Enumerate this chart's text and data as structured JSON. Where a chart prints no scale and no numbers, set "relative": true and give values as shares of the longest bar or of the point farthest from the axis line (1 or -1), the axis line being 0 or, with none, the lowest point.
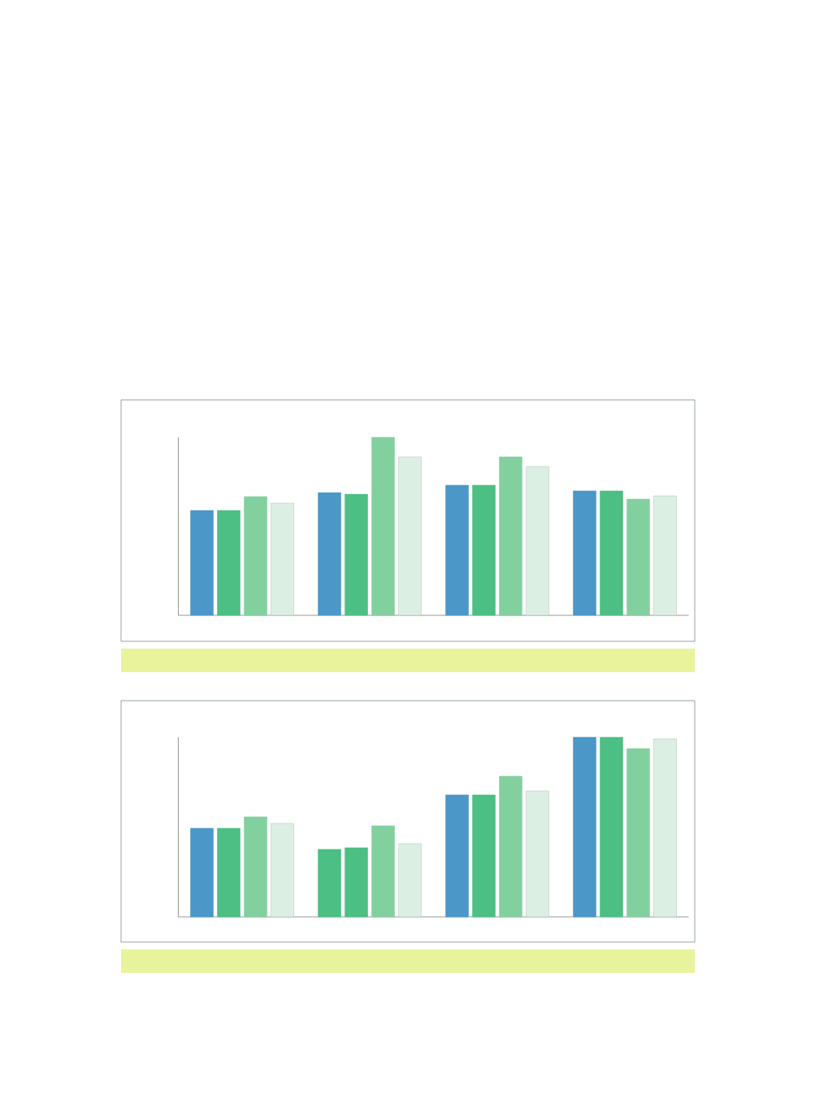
{
  "chart_data": [
    {
      "type": "bar",
      "relative": true,
      "categories": [
        null,
        null,
        null,
        null
      ],
      "series": [
        {
          "color": "#4a97c8",
          "values": [
            0.589,
            0.689,
            0.731,
            0.699
          ]
        },
        {
          "color": "#4cbf84",
          "values": [
            0.589,
            0.68,
            0.731,
            0.699
          ]
        },
        {
          "color": "#82d09e",
          "values": [
            0.667,
            1,
            0.89,
            0.653
          ]
        },
        {
          "color": "#dcefe3",
          "values": [
            0.63,
            0.89,
            0.836,
            0.671
          ]
        }
      ]
    },
    {
      "type": "bar",
      "relative": true,
      "categories": [
        null,
        null,
        null,
        null
      ],
      "series": [
        {
          "color": "#4a97c8",
          "colors": [
            "#4a97c8",
            "#4cbf84",
            "#4a97c8",
            "#4a97c8"
          ],
          "values": [
            0.493,
            0.376,
            0.679,
            1
          ]
        },
        {
          "color": "#4cbf84",
          "values": [
            0.493,
            0.385,
            0.679,
            1
          ]
        },
        {
          "color": "#82d09e",
          "values": [
            0.557,
            0.507,
            0.783,
            0.937
          ]
        },
        {
          "color": "#dcefe3",
          "values": [
            0.52,
            0.407,
            0.701,
            0.991
          ]
        }
      ]
    }
  ]
}
